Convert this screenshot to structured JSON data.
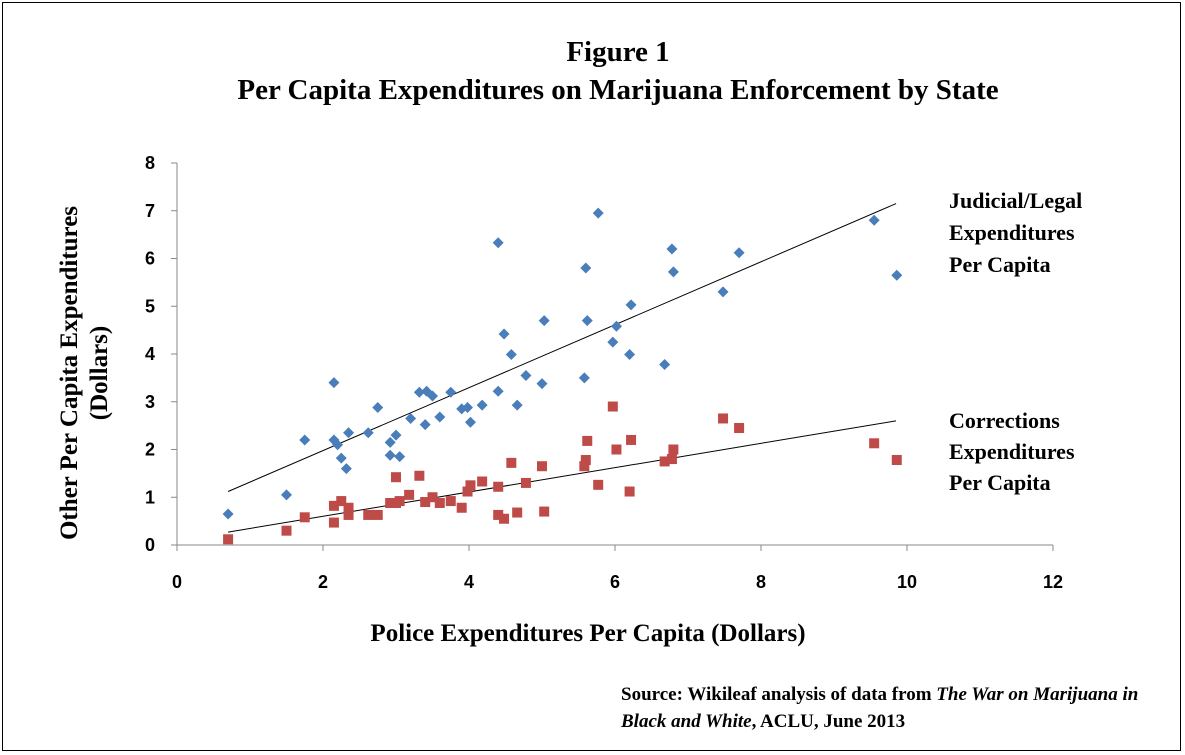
{
  "chart_data": {
    "type": "scatter",
    "title": "Figure 1",
    "subtitle": "Per Capita Expenditures on Marijuana Enforcement by State",
    "xlabel": "Police Expenditures Per Capita (Dollars)",
    "ylabel_line1": "Other Per Capita Expenditures",
    "ylabel_line2": "(Dollars)",
    "xlim": [
      0,
      12
    ],
    "ylim": [
      0,
      8
    ],
    "xticks": [
      "0",
      "2",
      "4",
      "6",
      "8",
      "10",
      "12"
    ],
    "yticks": [
      "0",
      "1",
      "2",
      "3",
      "4",
      "5",
      "6",
      "7",
      "8"
    ],
    "grid": false,
    "series": [
      {
        "key": "judicial",
        "label_lines": [
          "Judicial/Legal",
          "Expenditures",
          "Per Capita"
        ],
        "color": "#4a7ebb",
        "marker": "diamond",
        "trend": [
          [
            0.7,
            1.12
          ],
          [
            9.85,
            7.15
          ]
        ],
        "points": [
          [
            0.7,
            0.65
          ],
          [
            1.5,
            1.05
          ],
          [
            1.75,
            2.2
          ],
          [
            2.15,
            3.4
          ],
          [
            2.15,
            2.2
          ],
          [
            2.2,
            2.1
          ],
          [
            2.25,
            1.82
          ],
          [
            2.32,
            1.6
          ],
          [
            2.35,
            2.35
          ],
          [
            2.62,
            2.35
          ],
          [
            2.75,
            2.88
          ],
          [
            2.92,
            2.15
          ],
          [
            2.92,
            1.88
          ],
          [
            3.0,
            2.3
          ],
          [
            3.05,
            1.85
          ],
          [
            3.2,
            2.65
          ],
          [
            3.32,
            3.2
          ],
          [
            3.4,
            2.52
          ],
          [
            3.42,
            3.22
          ],
          [
            3.5,
            3.12
          ],
          [
            3.6,
            2.68
          ],
          [
            3.75,
            3.2
          ],
          [
            3.9,
            2.85
          ],
          [
            3.98,
            2.88
          ],
          [
            4.02,
            2.57
          ],
          [
            4.18,
            2.93
          ],
          [
            4.4,
            3.22
          ],
          [
            4.4,
            6.33
          ],
          [
            4.48,
            4.42
          ],
          [
            4.58,
            3.99
          ],
          [
            4.66,
            2.93
          ],
          [
            4.78,
            3.55
          ],
          [
            5.0,
            3.38
          ],
          [
            5.03,
            4.7
          ],
          [
            5.58,
            3.5
          ],
          [
            5.6,
            5.8
          ],
          [
            5.62,
            4.7
          ],
          [
            5.77,
            6.95
          ],
          [
            5.97,
            4.25
          ],
          [
            6.02,
            4.58
          ],
          [
            6.2,
            3.99
          ],
          [
            6.22,
            5.03
          ],
          [
            6.68,
            3.78
          ],
          [
            6.78,
            6.2
          ],
          [
            6.8,
            5.72
          ],
          [
            7.48,
            5.3
          ],
          [
            7.7,
            6.12
          ],
          [
            9.55,
            6.8
          ],
          [
            9.86,
            5.65
          ]
        ]
      },
      {
        "key": "corrections",
        "label_lines": [
          "Corrections",
          "Expenditures",
          "Per Capita"
        ],
        "color": "#be4b48",
        "marker": "square",
        "trend": [
          [
            0.7,
            0.27
          ],
          [
            9.85,
            2.6
          ]
        ],
        "points": [
          [
            0.7,
            0.12
          ],
          [
            1.5,
            0.3
          ],
          [
            1.75,
            0.58
          ],
          [
            2.15,
            0.82
          ],
          [
            2.15,
            0.47
          ],
          [
            2.25,
            0.92
          ],
          [
            2.35,
            0.78
          ],
          [
            2.35,
            0.63
          ],
          [
            2.62,
            0.63
          ],
          [
            2.75,
            0.63
          ],
          [
            2.92,
            0.88
          ],
          [
            3.0,
            0.88
          ],
          [
            3.0,
            1.42
          ],
          [
            3.05,
            0.92
          ],
          [
            3.18,
            1.05
          ],
          [
            3.32,
            1.45
          ],
          [
            3.4,
            0.9
          ],
          [
            3.5,
            1.0
          ],
          [
            3.6,
            0.88
          ],
          [
            3.75,
            0.92
          ],
          [
            3.9,
            0.78
          ],
          [
            3.98,
            1.12
          ],
          [
            4.02,
            1.25
          ],
          [
            4.18,
            1.33
          ],
          [
            4.4,
            1.22
          ],
          [
            4.4,
            0.63
          ],
          [
            4.48,
            0.55
          ],
          [
            4.58,
            1.72
          ],
          [
            4.66,
            0.68
          ],
          [
            4.78,
            1.3
          ],
          [
            5.0,
            1.65
          ],
          [
            5.03,
            0.7
          ],
          [
            5.58,
            1.65
          ],
          [
            5.6,
            1.78
          ],
          [
            5.62,
            2.18
          ],
          [
            5.77,
            1.26
          ],
          [
            5.97,
            2.9
          ],
          [
            6.02,
            2.0
          ],
          [
            6.2,
            1.12
          ],
          [
            6.22,
            2.2
          ],
          [
            6.68,
            1.75
          ],
          [
            6.78,
            1.8
          ],
          [
            6.8,
            2.0
          ],
          [
            7.48,
            2.65
          ],
          [
            7.7,
            2.45
          ],
          [
            9.55,
            2.13
          ],
          [
            9.86,
            1.78
          ]
        ]
      }
    ]
  },
  "source": {
    "prefix": "Source: Wikileaf analysis of data from ",
    "italic": "The War on Marijuana in Black and White",
    "suffix": ", ACLU, June 2013"
  }
}
